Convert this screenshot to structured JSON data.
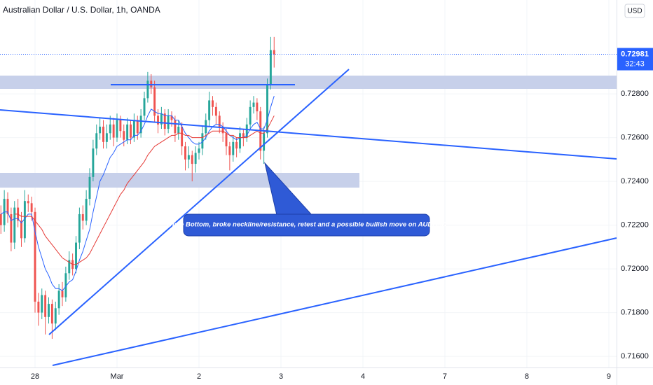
{
  "chart_data": {
    "type": "candlestick",
    "title": "Australian Dollar / U.S. Dollar, 1h, OANDA",
    "currency": "USD",
    "annotation": "Triple Bottom, broke neckline/resistance, retest and a possible bullish move on AUDUSD",
    "last_price": 0.72981,
    "countdown": "32:43",
    "up_color": "#26a69a",
    "down_color": "#ef5350",
    "x": [
      -10,
      -9,
      -8,
      -7,
      -6,
      -5,
      -4,
      -3,
      -2,
      -1,
      0,
      1,
      2,
      3,
      4,
      5,
      6,
      7,
      8,
      9,
      10,
      11,
      12,
      13,
      14,
      15,
      16,
      17,
      18,
      19,
      20,
      21,
      22,
      23,
      24,
      25,
      26,
      27,
      28,
      29,
      30,
      31,
      32,
      33,
      34,
      35,
      36,
      37,
      38,
      39,
      40,
      41,
      42,
      43,
      44,
      45,
      46,
      47,
      48,
      49,
      50,
      51,
      52,
      53,
      54,
      55,
      56,
      57,
      58,
      59,
      60,
      61,
      62,
      63,
      64,
      65,
      66,
      67,
      68,
      69,
      70
    ],
    "open": [
      0.7225,
      0.722,
      0.7232,
      0.7225,
      0.7212,
      0.7228,
      0.7222,
      0.7214,
      0.7231,
      0.723,
      0.7226,
      0.7185,
      0.718,
      0.7188,
      0.7178,
      0.7184,
      0.7175,
      0.7182,
      0.719,
      0.7187,
      0.7198,
      0.7204,
      0.72,
      0.7212,
      0.7225,
      0.7222,
      0.7232,
      0.7242,
      0.7255,
      0.7262,
      0.7265,
      0.7258,
      0.7262,
      0.7266,
      0.726,
      0.7268,
      0.7263,
      0.7259,
      0.7266,
      0.726,
      0.7268,
      0.7262,
      0.727,
      0.7278,
      0.7286,
      0.7283,
      0.727,
      0.7266,
      0.7271,
      0.7264,
      0.727,
      0.7268,
      0.7262,
      0.7265,
      0.7256,
      0.725,
      0.7252,
      0.7248,
      0.7253,
      0.7255,
      0.7262,
      0.7268,
      0.7277,
      0.7274,
      0.727,
      0.7265,
      0.7262,
      0.7256,
      0.7252,
      0.7258,
      0.7255,
      0.7262,
      0.726,
      0.7266,
      0.7274,
      0.7276,
      0.7272,
      0.7254,
      0.7262,
      0.7284,
      0.73
    ],
    "high": [
      0.7229,
      0.7236,
      0.7235,
      0.7228,
      0.7231,
      0.7232,
      0.7226,
      0.7236,
      0.7234,
      0.7233,
      0.7228,
      0.7189,
      0.7191,
      0.719,
      0.7187,
      0.7186,
      0.7185,
      0.7193,
      0.7194,
      0.7201,
      0.7208,
      0.7207,
      0.7215,
      0.7228,
      0.7229,
      0.7236,
      0.7246,
      0.7259,
      0.7266,
      0.7269,
      0.7268,
      0.7266,
      0.727,
      0.7269,
      0.7271,
      0.727,
      0.7266,
      0.7269,
      0.7268,
      0.7271,
      0.727,
      0.7273,
      0.7281,
      0.729,
      0.7289,
      0.7286,
      0.7273,
      0.7274,
      0.7273,
      0.7273,
      0.7272,
      0.727,
      0.7268,
      0.7267,
      0.7258,
      0.7256,
      0.7254,
      0.7256,
      0.7258,
      0.7265,
      0.7271,
      0.7281,
      0.7279,
      0.7276,
      0.7272,
      0.7267,
      0.7264,
      0.7258,
      0.7261,
      0.726,
      0.7265,
      0.7264,
      0.7269,
      0.7277,
      0.7279,
      0.7278,
      0.7274,
      0.7265,
      0.7287,
      0.7306,
      0.7306
    ],
    "low": [
      0.7216,
      0.7217,
      0.7221,
      0.7208,
      0.7209,
      0.7219,
      0.721,
      0.7212,
      0.7226,
      0.7222,
      0.718,
      0.7174,
      0.7177,
      0.717,
      0.7175,
      0.7168,
      0.7172,
      0.7179,
      0.7183,
      0.7185,
      0.7195,
      0.7197,
      0.7198,
      0.7209,
      0.7218,
      0.722,
      0.7229,
      0.724,
      0.7252,
      0.7259,
      0.7255,
      0.7255,
      0.7259,
      0.7256,
      0.7258,
      0.726,
      0.7256,
      0.7257,
      0.7257,
      0.7258,
      0.7259,
      0.726,
      0.7268,
      0.7276,
      0.728,
      0.7267,
      0.7262,
      0.7264,
      0.7261,
      0.7262,
      0.7265,
      0.7258,
      0.7259,
      0.7252,
      0.7245,
      0.7246,
      0.724,
      0.7244,
      0.725,
      0.7252,
      0.7259,
      0.7265,
      0.727,
      0.7266,
      0.7262,
      0.7258,
      0.7252,
      0.7245,
      0.7249,
      0.7251,
      0.7253,
      0.7256,
      0.7258,
      0.7264,
      0.7271,
      0.7268,
      0.725,
      0.7248,
      0.726,
      0.7282,
      0.7292
    ],
    "close": [
      0.722,
      0.7232,
      0.7225,
      0.7212,
      0.7228,
      0.7222,
      0.7214,
      0.7231,
      0.723,
      0.7226,
      0.7185,
      0.718,
      0.7188,
      0.7178,
      0.7184,
      0.7175,
      0.7182,
      0.719,
      0.7187,
      0.7198,
      0.7204,
      0.72,
      0.7212,
      0.7225,
      0.7222,
      0.7232,
      0.7242,
      0.7255,
      0.7262,
      0.7265,
      0.7258,
      0.7262,
      0.7266,
      0.726,
      0.7268,
      0.7263,
      0.7259,
      0.7266,
      0.726,
      0.7268,
      0.7262,
      0.727,
      0.7278,
      0.7286,
      0.7283,
      0.727,
      0.7266,
      0.7271,
      0.7264,
      0.727,
      0.7268,
      0.7262,
      0.7265,
      0.7256,
      0.725,
      0.7252,
      0.7248,
      0.7253,
      0.7255,
      0.7262,
      0.7268,
      0.7277,
      0.7274,
      0.727,
      0.7265,
      0.7262,
      0.7256,
      0.7252,
      0.7258,
      0.7255,
      0.7262,
      0.726,
      0.7266,
      0.7274,
      0.7276,
      0.7272,
      0.7254,
      0.7262,
      0.7284,
      0.73,
      0.7298
    ],
    "indicators": [
      {
        "color": "#2962ff",
        "values": [
          0.7225,
          0.7226,
          0.7226,
          0.7222,
          0.7223,
          0.7223,
          0.7221,
          0.7223,
          0.7225,
          0.7225,
          0.7217,
          0.721,
          0.7205,
          0.72,
          0.7197,
          0.7193,
          0.7191,
          0.7191,
          0.719,
          0.7192,
          0.7194,
          0.7195,
          0.7199,
          0.7204,
          0.7208,
          0.7213,
          0.7218,
          0.7226,
          0.7233,
          0.724,
          0.7243,
          0.7247,
          0.7251,
          0.7253,
          0.7256,
          0.7257,
          0.7258,
          0.7259,
          0.7259,
          0.7261,
          0.7261,
          0.7263,
          0.7266,
          0.727,
          0.7273,
          0.7272,
          0.7271,
          0.7271,
          0.727,
          0.727,
          0.727,
          0.7268,
          0.7268,
          0.7265,
          0.7262,
          0.726,
          0.7258,
          0.7257,
          0.7257,
          0.7258,
          0.726,
          0.7263,
          0.7265,
          0.7266,
          0.7266,
          0.7265,
          0.7263,
          0.7261,
          0.726,
          0.7259,
          0.726,
          0.726,
          0.7261,
          0.7264,
          0.7266,
          0.7267,
          0.7264,
          0.7264,
          0.7268,
          0.7274,
          0.7279
        ]
      },
      {
        "color": "#e53935",
        "values": [
          null,
          null,
          null,
          null,
          0.7225,
          0.7225,
          0.7224,
          0.7224,
          0.7224,
          0.7224,
          0.7222,
          0.722,
          0.7218,
          0.7215,
          0.7213,
          0.7211,
          0.7209,
          0.7207,
          0.7205,
          0.7204,
          0.7203,
          0.7202,
          0.7202,
          0.7203,
          0.7204,
          0.7205,
          0.7207,
          0.721,
          0.7213,
          0.7216,
          0.7219,
          0.7222,
          0.7225,
          0.7228,
          0.7231,
          0.7234,
          0.7236,
          0.7239,
          0.7241,
          0.7243,
          0.7245,
          0.7247,
          0.7249,
          0.7252,
          0.7254,
          0.7256,
          0.7257,
          0.7258,
          0.7259,
          0.726,
          0.7261,
          0.7261,
          0.7262,
          0.7262,
          0.7261,
          0.7261,
          0.726,
          0.726,
          0.726,
          0.726,
          0.7261,
          0.7262,
          0.7263,
          0.7263,
          0.7263,
          0.7263,
          0.7262,
          0.7261,
          0.7261,
          0.726,
          0.726,
          0.726,
          0.726,
          0.7261,
          0.7262,
          0.7263,
          0.7262,
          0.7262,
          0.7264,
          0.7267,
          0.727
        ]
      }
    ],
    "xlim": [
      -10.26,
      170.26
    ],
    "xticks": [
      {
        "value": 0,
        "label": "28"
      },
      {
        "value": 24,
        "label": "Mar"
      },
      {
        "value": 48,
        "label": "2"
      },
      {
        "value": 72,
        "label": "3"
      },
      {
        "value": 96,
        "label": "4"
      },
      {
        "value": 120,
        "label": "7"
      },
      {
        "value": 144,
        "label": "8"
      },
      {
        "value": 168,
        "label": "9"
      }
    ],
    "ylim": [
      0.71549,
      0.73229
    ],
    "yticks": [
      {
        "value": 0.716,
        "label": "0.71600"
      },
      {
        "value": 0.718,
        "label": "0.71800"
      },
      {
        "value": 0.72,
        "label": "0.72000"
      },
      {
        "value": 0.722,
        "label": "0.72200"
      },
      {
        "value": 0.724,
        "label": "0.72400"
      },
      {
        "value": 0.726,
        "label": "0.72600"
      },
      {
        "value": 0.728,
        "label": "0.72800"
      }
    ],
    "grid": true
  }
}
